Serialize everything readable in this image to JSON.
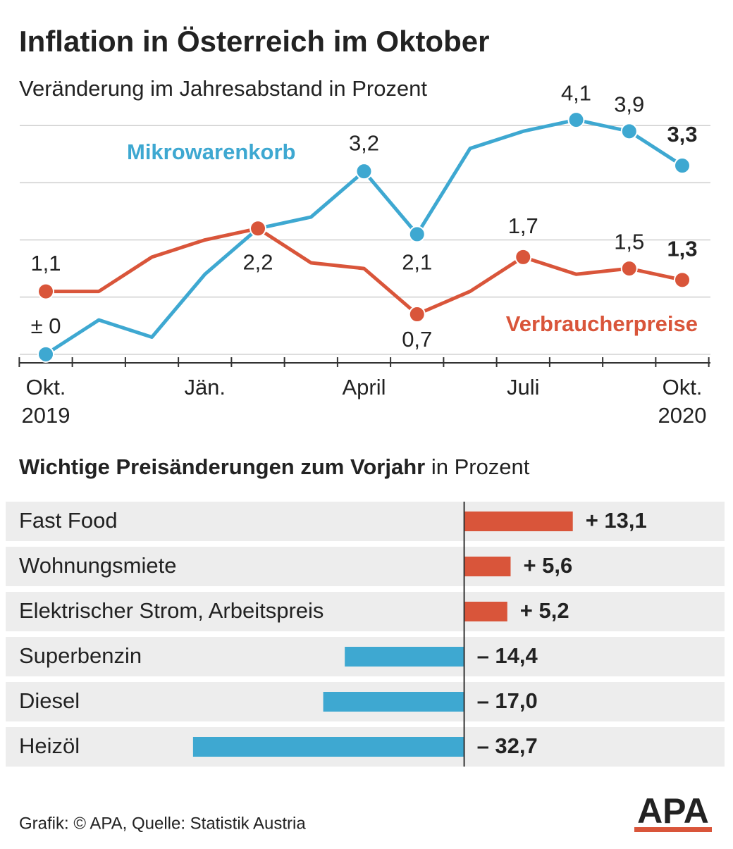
{
  "chart_data": [
    {
      "type": "line",
      "title": "Inflation in Österreich im Oktober",
      "subtitle": "Veränderung im Jahresabstand in Prozent",
      "categories": [
        "Okt.\n2019",
        null,
        null,
        "Jän.",
        null,
        null,
        "April",
        null,
        null,
        "Juli",
        null,
        null,
        "Okt.\n2020"
      ],
      "ylim": [
        -0.15,
        4.2
      ],
      "ygrid": [
        0,
        1,
        2,
        3,
        4
      ],
      "series": [
        {
          "name": "Mikrowarenkorb",
          "color": "#3ea8d1",
          "values": [
            0,
            0.6,
            0.3,
            1.4,
            2.2,
            2.4,
            3.2,
            2.1,
            3.6,
            3.9,
            4.1,
            3.9,
            3.3
          ],
          "value_labels": [
            "± 0",
            null,
            null,
            null,
            null,
            null,
            "3,2",
            "2,1",
            null,
            null,
            "4,1",
            "3,9",
            "3,3"
          ]
        },
        {
          "name": "Verbraucherpreise",
          "color": "#d9553a",
          "values": [
            1.1,
            1.1,
            1.7,
            2.0,
            2.2,
            1.6,
            1.5,
            0.7,
            1.1,
            1.7,
            1.4,
            1.5,
            1.3
          ],
          "value_labels": [
            "1,1",
            null,
            null,
            null,
            "2,2",
            null,
            null,
            "0,7",
            null,
            "1,7",
            null,
            "1,5",
            "1,3"
          ]
        }
      ]
    },
    {
      "type": "bar",
      "title": "Wichtige Preisänderungen zum Vorjahr",
      "subtitle": "in Prozent",
      "categories": [
        "Fast Food",
        "Wohnungsmiete",
        "Elektrischer Strom, Arbeitspreis",
        "Superbenzin",
        "Diesel",
        "Heizöl"
      ],
      "values": [
        13.1,
        5.6,
        5.2,
        -14.4,
        -17.0,
        -32.7
      ],
      "value_labels": [
        "+ 13,1",
        "+ 5,6",
        "+ 5,2",
        "– 14,4",
        "– 17,0",
        "– 32,7"
      ],
      "xlim": [
        -55.3,
        31.4
      ],
      "color_positive": "#d9553a",
      "color_negative": "#3ea8d1"
    }
  ],
  "source": "Grafik: © APA, Quelle: Statistik Austria",
  "logo": "APA"
}
